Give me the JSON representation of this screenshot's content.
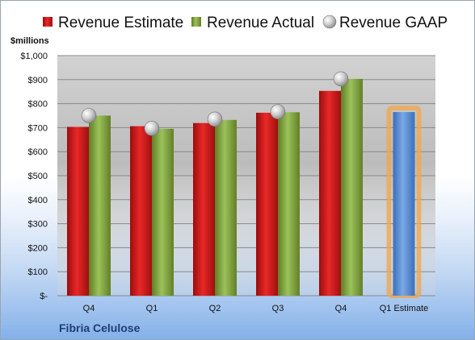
{
  "chart_data": {
    "type": "bar",
    "title": "",
    "unit_label": "$millions",
    "company": "Fibria Celulose",
    "categories": [
      "Q4",
      "Q1",
      "Q2",
      "Q3",
      "Q4",
      "Q1 Estimate"
    ],
    "series": [
      {
        "name": "Revenue Estimate",
        "type": "bar",
        "color": "#e02020",
        "values": [
          703,
          706,
          719,
          762,
          853,
          null
        ]
      },
      {
        "name": "Revenue Actual",
        "type": "bar",
        "color": "#8db048",
        "values": [
          750,
          695,
          732,
          764,
          903,
          null
        ]
      },
      {
        "name": "Revenue GAAP",
        "type": "marker",
        "color": "#b8b8b8",
        "values": [
          750,
          697,
          735,
          766,
          903,
          null
        ]
      },
      {
        "name": "Q1 Estimate",
        "type": "bar",
        "color": "#5b8fd6",
        "highlight": "#f0a64a",
        "values": [
          null,
          null,
          null,
          null,
          null,
          765
        ]
      }
    ],
    "y_ticks": [
      "$-",
      "$100",
      "$200",
      "$300",
      "$400",
      "$500",
      "$600",
      "$700",
      "$800",
      "$900",
      "$1,000"
    ],
    "ylim": [
      0,
      1000
    ],
    "legend_position": "top",
    "grid": true
  }
}
